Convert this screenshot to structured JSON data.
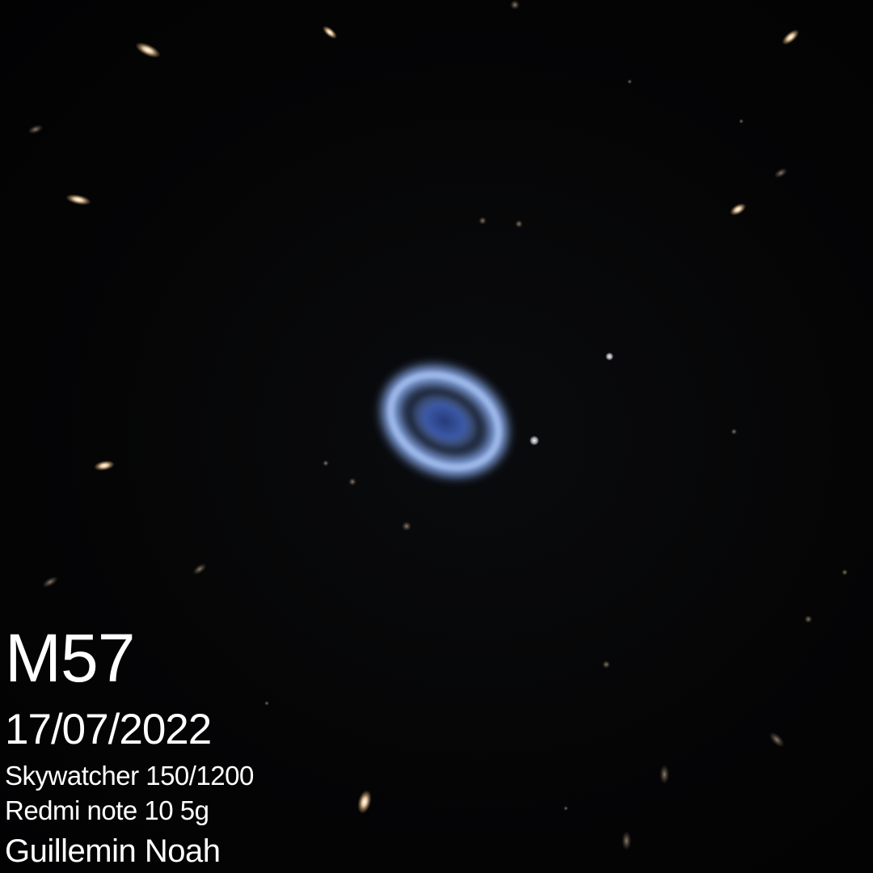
{
  "photo": {
    "subject_icon": "ring-nebula-icon",
    "colors": {
      "sky": "#050506",
      "nebula_ring": "#8fb3f2",
      "nebula_core": "#1e2f63",
      "star": "#f3d3a6",
      "caption": "#ffffff"
    }
  },
  "caption": {
    "object": "M57",
    "date": "17/07/2022",
    "telescope": "Skywatcher 150/1200",
    "camera": "Redmi note 10 5g",
    "author": "Guillemin Noah"
  }
}
